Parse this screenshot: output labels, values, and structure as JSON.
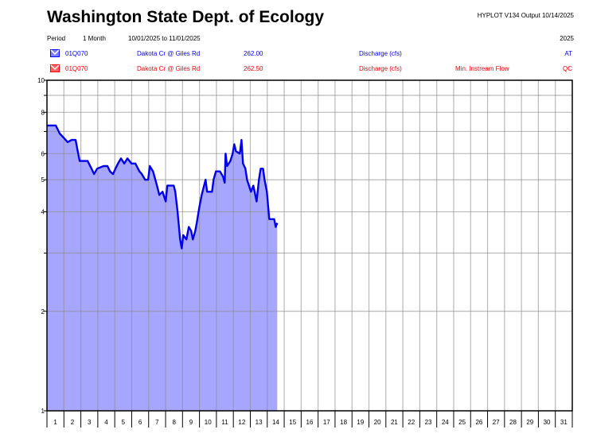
{
  "header": {
    "title": "Washington State Dept. of Ecology",
    "program": "HYPLOT V134  Output 10/14/2025",
    "period_label": "Period",
    "period_value": "1 Month",
    "date_range": "10/01/2025  to  11/01/2025",
    "year": "2025"
  },
  "legend": [
    {
      "icon": "blue-m-icon",
      "color": "#0000ff",
      "station": "01Q070",
      "site": "Dakota Cr @ Giles Rd",
      "code": "262.00",
      "param": "Discharge (cfs)",
      "extra": "",
      "flag": "AT"
    },
    {
      "icon": "red-m-icon",
      "color": "#ff0000",
      "station": "01Q070",
      "site": "Dakota Cr @ Giles Rd",
      "code": "262.50",
      "param": "Discharge (cfs)",
      "extra": "Min. Instream Flow",
      "flag": "QC"
    }
  ],
  "chart_data": {
    "type": "area",
    "title": "Washington State Dept. of Ecology",
    "xlabel": "",
    "ylabel": "Discharge (cfs)",
    "xlim": [
      1,
      32
    ],
    "ylim": [
      1,
      10
    ],
    "yscale": "log",
    "grid": true,
    "x_tick_labels": [
      "1",
      "2",
      "3",
      "4",
      "5",
      "6",
      "7",
      "8",
      "9",
      "10",
      "11",
      "12",
      "13",
      "14",
      "15",
      "16",
      "17",
      "18",
      "19",
      "20",
      "21",
      "22",
      "23",
      "24",
      "25",
      "26",
      "27",
      "28",
      "29",
      "30",
      "31"
    ],
    "y_ticks": [
      1,
      2,
      3,
      4,
      5,
      6,
      7,
      8,
      9,
      10
    ],
    "y_tick_labels": {
      "1": "1",
      "2": "2",
      "4": "4",
      "5": "5",
      "6": "6",
      "8": "8",
      "10": "10"
    },
    "line_color": "#0000ee",
    "fill_color": "#a6a6fe",
    "series": [
      {
        "name": "Discharge (cfs)",
        "points": [
          [
            1.0,
            7.3
          ],
          [
            1.52,
            7.3
          ],
          [
            1.75,
            6.9
          ],
          [
            1.99,
            6.7
          ],
          [
            2.22,
            6.5
          ],
          [
            2.46,
            6.6
          ],
          [
            2.69,
            6.6
          ],
          [
            2.79,
            6.2
          ],
          [
            2.93,
            5.7
          ],
          [
            3.4,
            5.7
          ],
          [
            3.63,
            5.4
          ],
          [
            3.78,
            5.2
          ],
          [
            3.96,
            5.4
          ],
          [
            4.34,
            5.5
          ],
          [
            4.57,
            5.5
          ],
          [
            4.72,
            5.3
          ],
          [
            4.9,
            5.2
          ],
          [
            5.04,
            5.4
          ],
          [
            5.19,
            5.6
          ],
          [
            5.37,
            5.8
          ],
          [
            5.56,
            5.6
          ],
          [
            5.75,
            5.8
          ],
          [
            5.99,
            5.6
          ],
          [
            6.22,
            5.6
          ],
          [
            6.46,
            5.3
          ],
          [
            6.6,
            5.2
          ],
          [
            6.79,
            5.0
          ],
          [
            6.97,
            5.0
          ],
          [
            7.07,
            5.5
          ],
          [
            7.26,
            5.3
          ],
          [
            7.49,
            4.8
          ],
          [
            7.63,
            4.5
          ],
          [
            7.82,
            4.6
          ],
          [
            8.01,
            4.3
          ],
          [
            8.1,
            4.8
          ],
          [
            8.48,
            4.8
          ],
          [
            8.57,
            4.6
          ],
          [
            8.71,
            4.0
          ],
          [
            8.86,
            3.3
          ],
          [
            8.95,
            3.1
          ],
          [
            9.04,
            3.4
          ],
          [
            9.23,
            3.3
          ],
          [
            9.37,
            3.6
          ],
          [
            9.51,
            3.5
          ],
          [
            9.61,
            3.3
          ],
          [
            9.75,
            3.5
          ],
          [
            9.84,
            3.7
          ],
          [
            9.98,
            4.1
          ],
          [
            10.13,
            4.5
          ],
          [
            10.27,
            4.8
          ],
          [
            10.36,
            5.0
          ],
          [
            10.45,
            4.6
          ],
          [
            10.74,
            4.6
          ],
          [
            10.83,
            5.0
          ],
          [
            10.97,
            5.3
          ],
          [
            11.21,
            5.3
          ],
          [
            11.4,
            5.1
          ],
          [
            11.49,
            4.9
          ],
          [
            11.54,
            6.0
          ],
          [
            11.63,
            5.5
          ],
          [
            11.82,
            5.7
          ],
          [
            11.96,
            6.0
          ],
          [
            12.05,
            6.4
          ],
          [
            12.15,
            6.1
          ],
          [
            12.38,
            6.0
          ],
          [
            12.48,
            6.6
          ],
          [
            12.57,
            5.6
          ],
          [
            12.71,
            5.4
          ],
          [
            12.81,
            5.0
          ],
          [
            13.04,
            4.6
          ],
          [
            13.18,
            4.8
          ],
          [
            13.37,
            4.3
          ],
          [
            13.51,
            5.0
          ],
          [
            13.61,
            5.4
          ],
          [
            13.75,
            5.4
          ],
          [
            13.84,
            5.0
          ],
          [
            13.98,
            4.6
          ],
          [
            14.12,
            3.8
          ],
          [
            14.41,
            3.8
          ],
          [
            14.5,
            3.6
          ],
          [
            14.59,
            3.7
          ]
        ]
      }
    ]
  }
}
